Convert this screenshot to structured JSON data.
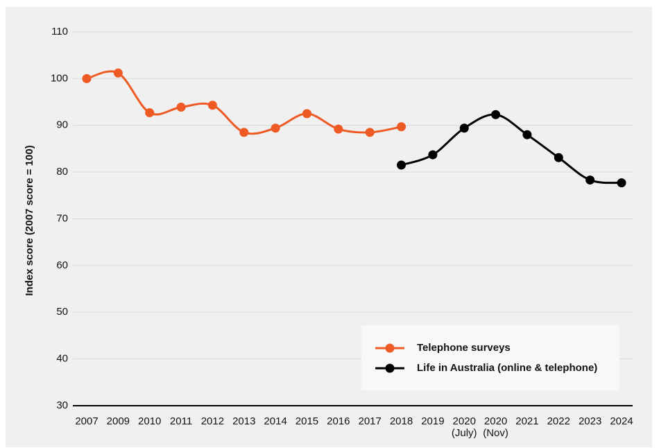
{
  "chart_data": {
    "type": "line",
    "y_label": "Index score (2007 score = 100)",
    "categories": [
      "2007",
      "2009",
      "2010",
      "2011",
      "2012",
      "2013",
      "2014",
      "2015",
      "2016",
      "2017",
      "2018",
      "2019",
      "2020\n(July)",
      "2020\n(Nov)",
      "2021",
      "2022",
      "2023",
      "2024"
    ],
    "series": [
      {
        "name": "Telephone surveys",
        "color": "#ee5a24",
        "values": [
          100,
          101.2,
          92.7,
          93.9,
          94.3,
          88.5,
          89.4,
          92.5,
          89.2,
          88.5,
          89.7,
          null,
          null,
          null,
          null,
          null,
          null,
          null
        ]
      },
      {
        "name": "Life in Australia (online & telephone)",
        "color": "#000000",
        "values": [
          null,
          null,
          null,
          null,
          null,
          null,
          null,
          null,
          null,
          null,
          81.5,
          83.7,
          89.4,
          92.3,
          88.0,
          83.1,
          78.3,
          77.7
        ]
      }
    ],
    "ylim": [
      30,
      110
    ],
    "yticks": [
      30,
      40,
      50,
      60,
      70,
      80,
      90,
      100,
      110
    ],
    "grid": true,
    "legend": "lower right"
  }
}
